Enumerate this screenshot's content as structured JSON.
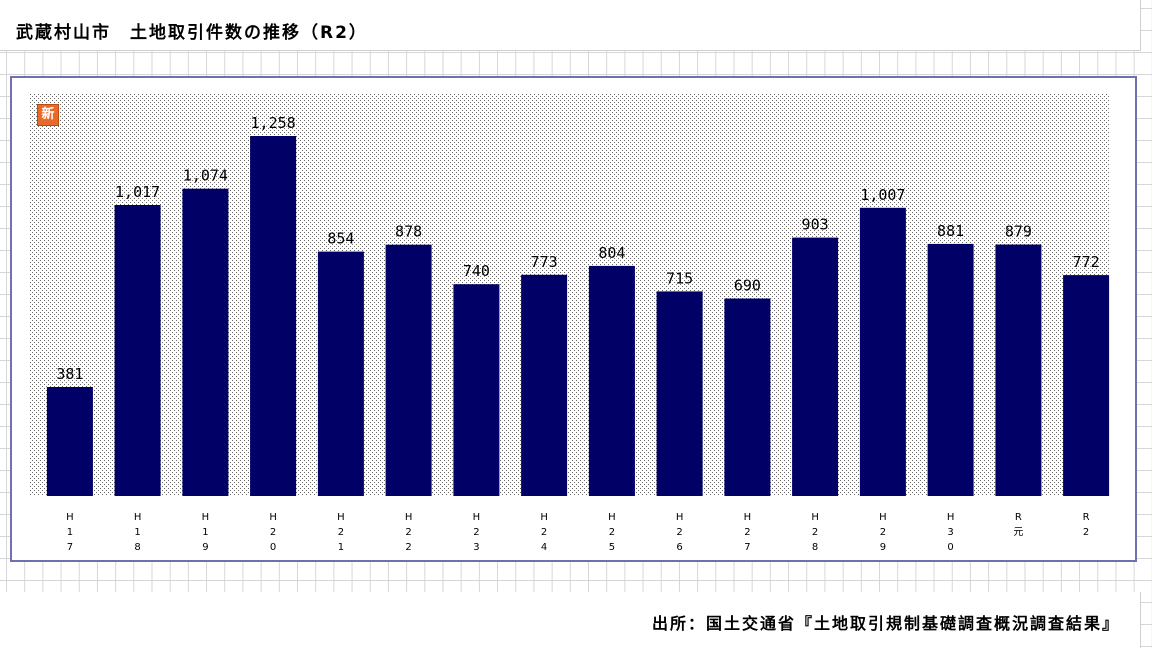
{
  "title": "武蔵村山市　土地取引件数の推移（R2）",
  "badge": "新",
  "source": "出所：国土交通省『土地取引規制基礎調査概況調査結果』",
  "colors": {
    "bar": "#000066",
    "frame": "#7070b0",
    "badge": "#e86a2a"
  },
  "chart_data": {
    "type": "bar",
    "categories": [
      "H17",
      "H18",
      "H19",
      "H20",
      "H21",
      "H22",
      "H23",
      "H24",
      "H25",
      "H26",
      "H27",
      "H28",
      "H29",
      "H30",
      "R元",
      "R2"
    ],
    "tick_labels": [
      [
        "H",
        "1",
        "7"
      ],
      [
        "H",
        "1",
        "8"
      ],
      [
        "H",
        "1",
        "9"
      ],
      [
        "H",
        "2",
        "0"
      ],
      [
        "H",
        "2",
        "1"
      ],
      [
        "H",
        "2",
        "2"
      ],
      [
        "H",
        "2",
        "3"
      ],
      [
        "H",
        "2",
        "4"
      ],
      [
        "H",
        "2",
        "5"
      ],
      [
        "H",
        "2",
        "6"
      ],
      [
        "H",
        "2",
        "7"
      ],
      [
        "H",
        "2",
        "8"
      ],
      [
        "H",
        "2",
        "9"
      ],
      [
        "H",
        "3",
        "0"
      ],
      [
        "R",
        "元"
      ],
      [
        "R",
        "2"
      ]
    ],
    "values": [
      381,
      1017,
      1074,
      1258,
      854,
      878,
      740,
      773,
      804,
      715,
      690,
      903,
      1007,
      881,
      879,
      772
    ],
    "value_labels": [
      "381",
      "1,017",
      "1,074",
      "1,258",
      "854",
      "878",
      "740",
      "773",
      "804",
      "715",
      "690",
      "903",
      "1,007",
      "881",
      "879",
      "772"
    ],
    "ylim": [
      0,
      1400
    ],
    "grid": false,
    "legend": "none"
  }
}
